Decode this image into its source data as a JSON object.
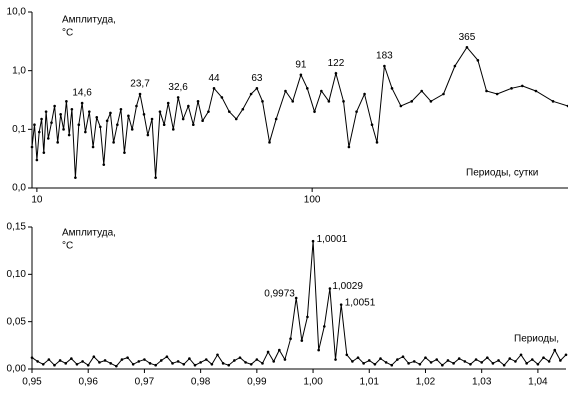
{
  "chart_data": [
    {
      "type": "line",
      "xlog": true,
      "ylog": true,
      "y_label": "Амплитуда,",
      "y_unit": "°C",
      "x_label": "Периоды, сутки",
      "xlim": [
        9.6,
        850
      ],
      "xticks": [
        10,
        100
      ],
      "ylim": [
        0.01,
        10
      ],
      "yticks": [
        {
          "value": 0.01,
          "label": "0,0"
        },
        {
          "value": 0.1,
          "label": "0,1"
        },
        {
          "value": 1,
          "label": "1,0"
        },
        {
          "value": 10,
          "label": "10,0"
        }
      ],
      "color": "#000000",
      "x": [
        9.6,
        9.8,
        10,
        10.2,
        10.4,
        10.6,
        10.8,
        11,
        11.3,
        11.6,
        11.9,
        12.2,
        12.5,
        12.8,
        13.1,
        13.4,
        13.8,
        14.2,
        14.6,
        15,
        15.5,
        16,
        16.5,
        17,
        17.5,
        18,
        18.5,
        19,
        19.6,
        20.2,
        20.8,
        21.5,
        22.2,
        23,
        23.7,
        24.5,
        25.3,
        26.2,
        27,
        28,
        29,
        30,
        31.3,
        32.6,
        34,
        35.5,
        37,
        38.5,
        40,
        42,
        44,
        47,
        50,
        53,
        56,
        60,
        63,
        66,
        70,
        74,
        80,
        85,
        91,
        96,
        102,
        108,
        115,
        122,
        130,
        136,
        145,
        155,
        165,
        172,
        183,
        195,
        210,
        230,
        250,
        270,
        300,
        330,
        365,
        400,
        430,
        470,
        530,
        580,
        650,
        750,
        850
      ],
      "values": [
        0.05,
        0.12,
        0.03,
        0.09,
        0.15,
        0.04,
        0.2,
        0.07,
        0.13,
        0.25,
        0.06,
        0.18,
        0.1,
        0.3,
        0.08,
        0.22,
        0.015,
        0.12,
        0.28,
        0.09,
        0.2,
        0.05,
        0.16,
        0.11,
        0.025,
        0.14,
        0.19,
        0.06,
        0.12,
        0.22,
        0.04,
        0.17,
        0.1,
        0.25,
        0.4,
        0.18,
        0.08,
        0.15,
        0.015,
        0.2,
        0.12,
        0.28,
        0.1,
        0.35,
        0.15,
        0.25,
        0.12,
        0.3,
        0.14,
        0.2,
        0.5,
        0.35,
        0.2,
        0.15,
        0.22,
        0.4,
        0.5,
        0.3,
        0.06,
        0.15,
        0.45,
        0.3,
        0.85,
        0.5,
        0.2,
        0.45,
        0.3,
        0.9,
        0.3,
        0.05,
        0.2,
        0.4,
        0.12,
        0.06,
        1.2,
        0.5,
        0.25,
        0.3,
        0.45,
        0.3,
        0.4,
        1.2,
        2.5,
        1.5,
        0.45,
        0.4,
        0.5,
        0.55,
        0.45,
        0.3,
        0.25
      ],
      "annotations": [
        {
          "text": "14,6",
          "x": 14.6,
          "y": 0.28
        },
        {
          "text": "23,7",
          "x": 23.7,
          "y": 0.4
        },
        {
          "text": "32,6",
          "x": 32.6,
          "y": 0.35
        },
        {
          "text": "44",
          "x": 44,
          "y": 0.5
        },
        {
          "text": "63",
          "x": 63,
          "y": 0.5
        },
        {
          "text": "91",
          "x": 91,
          "y": 0.85
        },
        {
          "text": "122",
          "x": 122,
          "y": 0.9
        },
        {
          "text": "183",
          "x": 183,
          "y": 1.2
        },
        {
          "text": "365",
          "x": 365,
          "y": 2.5
        }
      ]
    },
    {
      "type": "line",
      "xlog": false,
      "ylog": false,
      "y_label": "Амплитуда,",
      "y_unit": "°C",
      "x_label": "Периоды,",
      "xlim": [
        0.95,
        1.045
      ],
      "xticks": [
        {
          "value": 0.95,
          "label": "0,95"
        },
        {
          "value": 0.96,
          "label": "0,96"
        },
        {
          "value": 0.97,
          "label": "0,97"
        },
        {
          "value": 0.98,
          "label": "0,98"
        },
        {
          "value": 0.99,
          "label": "0,99"
        },
        {
          "value": 1.0,
          "label": "1,00"
        },
        {
          "value": 1.01,
          "label": "1,01"
        },
        {
          "value": 1.02,
          "label": "1,02"
        },
        {
          "value": 1.03,
          "label": "1,03"
        },
        {
          "value": 1.04,
          "label": "1,04"
        }
      ],
      "ylim": [
        0,
        0.15
      ],
      "yticks": [
        {
          "value": 0,
          "label": "0,00"
        },
        {
          "value": 0.05,
          "label": "0,05"
        },
        {
          "value": 0.1,
          "label": "0,10"
        },
        {
          "value": 0.15,
          "label": "0,15"
        }
      ],
      "color": "#000000",
      "x": [
        0.95,
        0.951,
        0.952,
        0.953,
        0.954,
        0.955,
        0.956,
        0.957,
        0.958,
        0.959,
        0.96,
        0.961,
        0.962,
        0.963,
        0.964,
        0.965,
        0.966,
        0.967,
        0.968,
        0.969,
        0.97,
        0.971,
        0.972,
        0.973,
        0.974,
        0.975,
        0.976,
        0.977,
        0.978,
        0.979,
        0.98,
        0.981,
        0.982,
        0.983,
        0.984,
        0.985,
        0.986,
        0.987,
        0.988,
        0.989,
        0.99,
        0.991,
        0.992,
        0.993,
        0.994,
        0.995,
        0.996,
        0.997,
        0.998,
        0.999,
        1.0,
        1.001,
        1.002,
        1.003,
        1.004,
        1.005,
        1.006,
        1.007,
        1.008,
        1.009,
        1.01,
        1.011,
        1.012,
        1.013,
        1.014,
        1.015,
        1.016,
        1.017,
        1.018,
        1.019,
        1.02,
        1.021,
        1.022,
        1.023,
        1.024,
        1.025,
        1.026,
        1.027,
        1.028,
        1.029,
        1.03,
        1.031,
        1.032,
        1.033,
        1.034,
        1.035,
        1.036,
        1.037,
        1.038,
        1.039,
        1.04,
        1.041,
        1.042,
        1.043,
        1.044,
        1.045
      ],
      "values": [
        0.012,
        0.008,
        0.005,
        0.01,
        0.004,
        0.009,
        0.006,
        0.011,
        0.005,
        0.008,
        0.004,
        0.013,
        0.007,
        0.009,
        0.006,
        0.003,
        0.01,
        0.012,
        0.005,
        0.008,
        0.01,
        0.006,
        0.004,
        0.009,
        0.013,
        0.006,
        0.008,
        0.005,
        0.011,
        0.004,
        0.007,
        0.01,
        0.005,
        0.015,
        0.006,
        0.004,
        0.009,
        0.012,
        0.007,
        0.005,
        0.01,
        0.006,
        0.018,
        0.008,
        0.02,
        0.01,
        0.032,
        0.075,
        0.03,
        0.055,
        0.135,
        0.02,
        0.045,
        0.085,
        0.01,
        0.068,
        0.015,
        0.008,
        0.012,
        0.006,
        0.009,
        0.005,
        0.011,
        0.007,
        0.004,
        0.01,
        0.013,
        0.006,
        0.008,
        0.005,
        0.012,
        0.007,
        0.01,
        0.004,
        0.009,
        0.006,
        0.011,
        0.008,
        0.005,
        0.01,
        0.007,
        0.012,
        0.006,
        0.009,
        0.004,
        0.011,
        0.008,
        0.015,
        0.006,
        0.01,
        0.005,
        0.012,
        0.008,
        0.02,
        0.009,
        0.015
      ],
      "annotations": [
        {
          "text": "0,9973",
          "x": 0.9973,
          "y": 0.075
        },
        {
          "text": "1,0001",
          "x": 1.0001,
          "y": 0.135
        },
        {
          "text": "1,0029",
          "x": 1.0029,
          "y": 0.085
        },
        {
          "text": "1,0051",
          "x": 1.0051,
          "y": 0.068
        }
      ]
    }
  ]
}
